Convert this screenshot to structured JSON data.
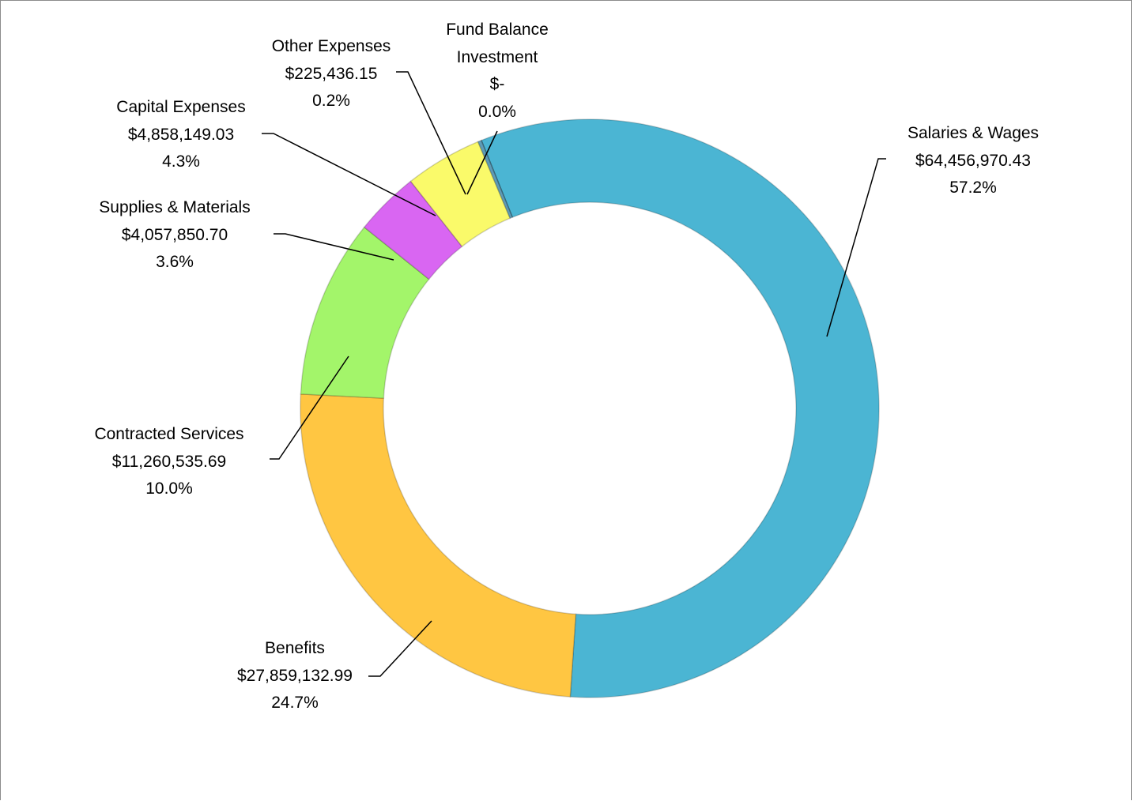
{
  "chart_data": {
    "type": "donut",
    "categories": [
      "Salaries & Wages",
      "Benefits",
      "Contracted Services",
      "Supplies & Materials",
      "Capital Expenses",
      "Other Expenses",
      "Fund Balance Investment"
    ],
    "values": [
      64456970.43,
      27859132.99,
      11260535.69,
      4057850.7,
      4858149.03,
      225436.15,
      0
    ],
    "value_labels": [
      "$64,456,970.43",
      "$27,859,132.99",
      "$11,260,535.69",
      "$4,057,850.70",
      "$4,858,149.03",
      "$225,436.15",
      "$-"
    ],
    "percent_labels": [
      "57.2%",
      "24.7%",
      "10.0%",
      "3.6%",
      "4.3%",
      "0.2%",
      "0.0%"
    ],
    "colors": [
      "#4bb5d3",
      "#ffc642",
      "#a3f56a",
      "#d966f2",
      "#fafa6a",
      "#5e9cb8",
      "#3f6f86"
    ]
  }
}
